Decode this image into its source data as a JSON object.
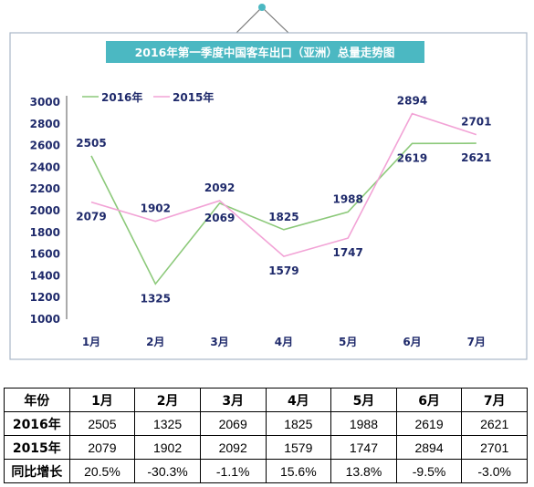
{
  "chart_data": {
    "type": "line",
    "title": "2016年第一季度中国客车出口（亚洲）总量走势图",
    "categories": [
      "1月",
      "2月",
      "3月",
      "4月",
      "5月",
      "6月",
      "7月"
    ],
    "series": [
      {
        "name": "2016年",
        "color": "#8cc97a",
        "values": [
          2505,
          1325,
          2069,
          1825,
          1988,
          2619,
          2621
        ]
      },
      {
        "name": "2015年",
        "color": "#f2a3d6",
        "values": [
          2079,
          1902,
          2092,
          1579,
          1747,
          2894,
          2701
        ]
      }
    ],
    "yticks": [
      1000,
      1200,
      1400,
      1600,
      1800,
      2000,
      2200,
      2400,
      2600,
      2800,
      3000
    ],
    "ylim": [
      1000,
      3000
    ],
    "grid": false,
    "legend": "top-left",
    "title_bg_color": "#4bb8c2"
  },
  "table": {
    "header": [
      "年份",
      "1月",
      "2月",
      "3月",
      "4月",
      "5月",
      "6月",
      "7月"
    ],
    "rows": [
      [
        "2016年",
        "2505",
        "1325",
        "2069",
        "1825",
        "1988",
        "2619",
        "2621"
      ],
      [
        "2015年",
        "2079",
        "1902",
        "2092",
        "1579",
        "1747",
        "2894",
        "2701"
      ],
      [
        "同比增长",
        "20.5%",
        "-30.3%",
        "-1.1%",
        "15.6%",
        "13.8%",
        "-9.5%",
        "-3.0%"
      ]
    ]
  }
}
